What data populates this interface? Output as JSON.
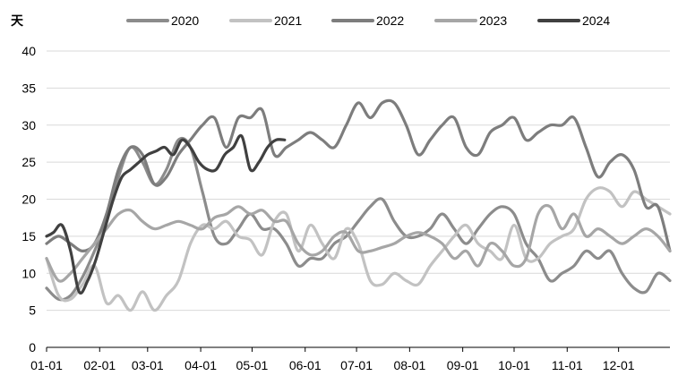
{
  "chart_data": {
    "type": "line",
    "ylabel": "天",
    "ylim": [
      0,
      40
    ],
    "yticks": [
      "0",
      "5",
      "10",
      "15",
      "20",
      "25",
      "30",
      "35",
      "40"
    ],
    "xlim": [
      1,
      365
    ],
    "xticks": [
      {
        "label": "01-01",
        "day": 1
      },
      {
        "label": "02-01",
        "day": 32
      },
      {
        "label": "03-01",
        "day": 60
      },
      {
        "label": "04-01",
        "day": 91
      },
      {
        "label": "05-01",
        "day": 121
      },
      {
        "label": "06-01",
        "day": 152
      },
      {
        "label": "07-01",
        "day": 182
      },
      {
        "label": "08-01",
        "day": 213
      },
      {
        "label": "09-01",
        "day": 244
      },
      {
        "label": "10-01",
        "day": 274
      },
      {
        "label": "11-01",
        "day": 305
      },
      {
        "label": "12-01",
        "day": 335
      }
    ],
    "grid": true,
    "legend": "top",
    "series": [
      {
        "name": "2020",
        "color": "#8c8c8c",
        "x": [
          1,
          8,
          15,
          22,
          29,
          36,
          43,
          50,
          57,
          64,
          71,
          78,
          85,
          92,
          99,
          106,
          113,
          120,
          127,
          134,
          141,
          148,
          155,
          162,
          169,
          176,
          183,
          190,
          197,
          204,
          211,
          218,
          225,
          232,
          239,
          246,
          253,
          260,
          267,
          274,
          281,
          288,
          295,
          302,
          309,
          316,
          323,
          330,
          337,
          344,
          351,
          358,
          365
        ],
        "y": [
          8,
          6.5,
          7,
          9.5,
          13,
          17,
          23,
          27,
          25,
          22,
          24,
          28,
          27,
          21,
          15,
          14,
          16,
          18,
          16,
          16,
          14,
          11,
          12,
          12,
          14,
          15,
          17,
          19,
          20,
          17,
          15,
          15,
          16,
          18,
          16,
          14,
          16,
          18,
          19,
          18,
          14,
          12,
          9,
          10,
          11,
          13,
          12,
          13,
          10,
          8,
          7.5,
          10,
          9
        ]
      },
      {
        "name": "2021",
        "color": "#c2c2c2",
        "x": [
          1,
          8,
          15,
          22,
          29,
          36,
          43,
          50,
          57,
          64,
          71,
          78,
          85,
          92,
          99,
          106,
          113,
          120,
          127,
          134,
          141,
          148,
          155,
          162,
          169,
          176,
          183,
          190,
          197,
          204,
          211,
          218,
          225,
          232,
          239,
          246,
          253,
          260,
          267,
          274,
          281,
          288,
          295,
          302,
          309,
          316,
          323,
          330,
          337,
          344,
          351,
          358,
          365
        ],
        "y": [
          12,
          7,
          6.5,
          8.5,
          11,
          6,
          7,
          5,
          7.5,
          5,
          7,
          9,
          14,
          16.5,
          16,
          17,
          15,
          14.5,
          12.5,
          17,
          18,
          13,
          16.5,
          14,
          12,
          16,
          14,
          9,
          8.5,
          10,
          9,
          8.5,
          11,
          13,
          15,
          16.5,
          14,
          13,
          12,
          16.5,
          12,
          12,
          14,
          15,
          16,
          20,
          21.5,
          21,
          19,
          21,
          20,
          19,
          18
        ]
      },
      {
        "name": "2022",
        "color": "#7d7d7d",
        "x": [
          1,
          8,
          15,
          22,
          29,
          36,
          43,
          50,
          57,
          64,
          71,
          78,
          85,
          92,
          99,
          106,
          113,
          120,
          127,
          134,
          141,
          148,
          155,
          162,
          169,
          176,
          183,
          190,
          197,
          204,
          211,
          218,
          225,
          232,
          239,
          246,
          253,
          260,
          267,
          274,
          281,
          288,
          295,
          302,
          309,
          316,
          323,
          330,
          337,
          344,
          351,
          358,
          365
        ],
        "y": [
          14,
          15,
          14,
          13,
          14,
          18,
          24,
          27,
          26,
          22,
          23,
          26,
          28,
          30,
          31,
          27,
          31,
          31,
          32,
          26,
          27,
          28,
          29,
          28,
          27,
          30,
          33,
          31,
          33,
          33,
          30,
          26,
          28,
          30,
          31,
          27,
          26,
          29,
          30,
          31,
          28,
          29,
          30,
          30,
          31,
          27,
          23,
          25,
          26,
          24,
          19,
          19,
          13
        ]
      },
      {
        "name": "2023",
        "color": "#a6a6a6",
        "x": [
          1,
          8,
          15,
          22,
          29,
          36,
          43,
          50,
          57,
          64,
          71,
          78,
          85,
          92,
          99,
          106,
          113,
          120,
          127,
          134,
          141,
          148,
          155,
          162,
          169,
          176,
          183,
          190,
          197,
          204,
          211,
          218,
          225,
          232,
          239,
          246,
          253,
          260,
          267,
          274,
          281,
          288,
          295,
          302,
          309,
          316,
          323,
          330,
          337,
          344,
          351,
          358,
          365
        ],
        "y": [
          12,
          9,
          10,
          12,
          14,
          16,
          18,
          18.5,
          17,
          16,
          16.5,
          17,
          16.5,
          16,
          17.5,
          18,
          19,
          18,
          18.5,
          17,
          17,
          14,
          12.5,
          13,
          15,
          15.5,
          13,
          13,
          13.5,
          14,
          15,
          15.5,
          15,
          14,
          12,
          13,
          11,
          14,
          13,
          11,
          12,
          18,
          19,
          16,
          18,
          15,
          16,
          15,
          14,
          15,
          16,
          15,
          13
        ]
      },
      {
        "name": "2024",
        "color": "#404040",
        "x": [
          1,
          5,
          10,
          15,
          20,
          25,
          30,
          35,
          40,
          45,
          50,
          55,
          60,
          65,
          70,
          75,
          80,
          85,
          90,
          95,
          100,
          105,
          110,
          115,
          120,
          125,
          130,
          135,
          140
        ],
        "y": [
          15,
          15.5,
          16.5,
          13,
          7.5,
          9,
          12,
          16,
          20,
          23,
          24,
          25,
          26,
          26.5,
          27,
          26,
          28,
          27,
          25,
          24,
          24,
          26,
          27,
          28.5,
          24,
          25,
          27,
          28,
          28
        ]
      }
    ]
  }
}
